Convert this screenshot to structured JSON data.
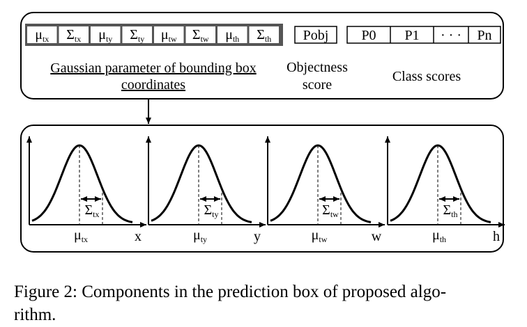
{
  "cells": [
    {
      "symbol": "μ",
      "sub": "tx"
    },
    {
      "symbol": "Σ",
      "sub": "tx"
    },
    {
      "symbol": "μ",
      "sub": "ty"
    },
    {
      "symbol": "Σ",
      "sub": "ty"
    },
    {
      "symbol": "μ",
      "sub": "tw"
    },
    {
      "symbol": "Σ",
      "sub": "tw"
    },
    {
      "symbol": "μ",
      "sub": "th"
    },
    {
      "symbol": "Σ",
      "sub": "th"
    }
  ],
  "gaussian_label": [
    "Gaussian parameter of bounding box",
    "coordinates"
  ],
  "objectness": {
    "cell": "Pobj",
    "label": [
      "Objectness",
      "score"
    ]
  },
  "class_scores": {
    "cells": [
      "P0",
      "P1",
      "· · ·",
      "Pn"
    ],
    "label": "Class scores"
  },
  "plots": [
    {
      "mean": {
        "symbol": "μ",
        "sub": "tx"
      },
      "sigma": {
        "symbol": "Σ",
        "sub": "tx"
      },
      "axis": "x"
    },
    {
      "mean": {
        "symbol": "μ",
        "sub": "ty"
      },
      "sigma": {
        "symbol": "Σ",
        "sub": "ty"
      },
      "axis": "y"
    },
    {
      "mean": {
        "symbol": "μ",
        "sub": "tw"
      },
      "sigma": {
        "symbol": "Σ",
        "sub": "tw"
      },
      "axis": "w"
    },
    {
      "mean": {
        "symbol": "μ",
        "sub": "th"
      },
      "sigma": {
        "symbol": "Σ",
        "sub": "th"
      },
      "axis": "h"
    }
  ],
  "caption": [
    "Figure 2:  Components in the prediction box of proposed algo-",
    "rithm."
  ]
}
